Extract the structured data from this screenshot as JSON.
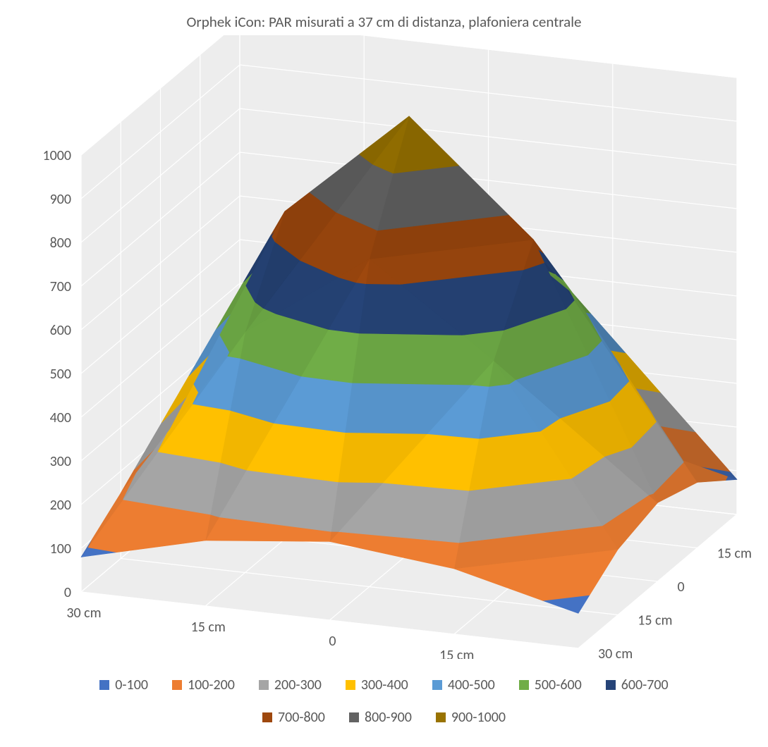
{
  "title": "Orphek iCon: PAR misurati a 37 cm di distanza, plafoniera centrale",
  "chart": {
    "type": "3d-surface-contour",
    "z_axis": {
      "min": 0,
      "max": 1000,
      "step": 100,
      "ticks": [
        0,
        100,
        200,
        300,
        400,
        500,
        600,
        700,
        800,
        900,
        1000
      ]
    },
    "x_categories": [
      "30 cm",
      "15 cm",
      "0",
      "15 cm",
      "30 cm"
    ],
    "y_categories": [
      "30 cm",
      "15 cm",
      "0",
      "15 cm",
      "30 cm"
    ],
    "grid": [
      [
        80,
        150,
        180,
        150,
        80
      ],
      [
        150,
        550,
        750,
        550,
        150
      ],
      [
        180,
        750,
        1000,
        750,
        180
      ],
      [
        150,
        550,
        750,
        550,
        150
      ],
      [
        80,
        150,
        180,
        150,
        80
      ]
    ],
    "bands": [
      {
        "lo": 0,
        "hi": 100,
        "color": "#4472c4",
        "label": "0-100"
      },
      {
        "lo": 100,
        "hi": 200,
        "color": "#ed7d31",
        "label": "100-200"
      },
      {
        "lo": 200,
        "hi": 300,
        "color": "#a5a5a5",
        "label": "200-300"
      },
      {
        "lo": 300,
        "hi": 400,
        "color": "#ffc000",
        "label": "300-400"
      },
      {
        "lo": 400,
        "hi": 500,
        "color": "#5b9bd5",
        "label": "400-500"
      },
      {
        "lo": 500,
        "hi": 600,
        "color": "#70ad47",
        "label": "500-600"
      },
      {
        "lo": 600,
        "hi": 700,
        "color": "#264478",
        "label": "600-700"
      },
      {
        "lo": 700,
        "hi": 800,
        "color": "#9e480e",
        "label": "700-800"
      },
      {
        "lo": 800,
        "hi": 900,
        "color": "#636363",
        "label": "800-900"
      },
      {
        "lo": 900,
        "hi": 1000,
        "color": "#997300",
        "label": "900-1000"
      }
    ],
    "wall_color": "#ededed",
    "wall_stroke": "#ffffff",
    "title_fontsize": 21,
    "axis_fontsize": 20,
    "legend_fontsize": 20,
    "background_color": "#ffffff"
  }
}
